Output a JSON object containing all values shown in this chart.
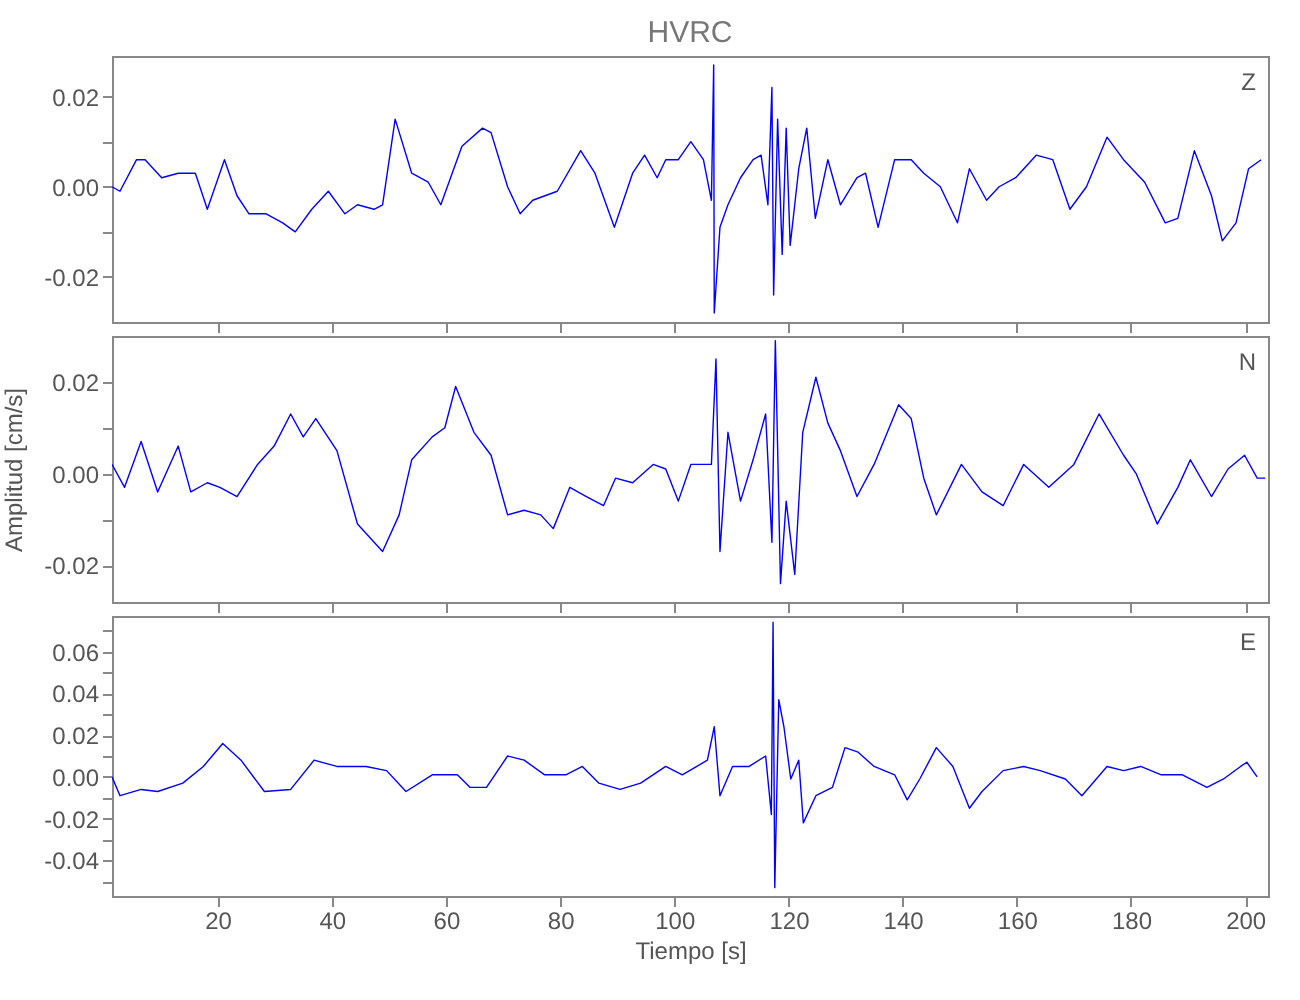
{
  "chart_data": [
    {
      "type": "line",
      "title": "HVRC",
      "annotations": [
        "Z"
      ],
      "xlim": [
        1.5,
        204
      ],
      "xticks": [
        20,
        40,
        60,
        80,
        100,
        120,
        140,
        160,
        180,
        200
      ],
      "ylim": [
        -0.03,
        0.029
      ],
      "yticks": [
        {
          "value": -0.02,
          "label": "-0.02"
        },
        {
          "value": -0.01,
          "label": null
        },
        {
          "value": 0,
          "label": "0.00"
        },
        {
          "value": 0.01,
          "label": null
        },
        {
          "value": 0.02,
          "label": "0.02"
        }
      ],
      "tick_labels": "y",
      "grid": false,
      "marker": "none",
      "line_style": "solid",
      "series": [
        {
          "color": "#0000ff",
          "x": [
            1.5,
            2.9,
            5.8,
            7.3,
            10.2,
            13.1,
            16.1,
            18.2,
            21.2,
            23.4,
            25.5,
            28.5,
            31.4,
            33.6,
            36.5,
            39.4,
            42.3,
            44.5,
            47.4,
            48.9,
            51.1,
            54.0,
            56.9,
            59.1,
            62.8,
            66.4,
            67.9,
            70.8,
            73.0,
            75.2,
            79.5,
            83.6,
            86.1,
            89.5,
            92.7,
            94.8,
            97.0,
            98.5,
            100.7,
            102.9,
            105.1,
            106.5,
            106.9,
            107.0,
            108.0,
            109.4,
            111.6,
            113.8,
            115.2,
            116.4,
            117.1,
            117.4,
            118.1,
            118.9,
            119.6,
            120.3,
            121.8,
            123.2,
            124.7,
            126.9,
            129.1,
            132.0,
            133.5,
            135.7,
            138.6,
            141.5,
            143.7,
            146.6,
            149.6,
            151.7,
            154.7,
            156.9,
            159.8,
            163.4,
            166.3,
            169.3,
            172.2,
            175.8,
            178.7,
            182.4,
            186.0,
            188.2,
            191.1,
            194.1,
            196.0,
            198.4,
            200.6,
            202.8
          ],
          "values": [
            0,
            -0.001,
            0.006,
            0.006,
            0.002,
            0.003,
            0.003,
            -0.005,
            0.006,
            -0.002,
            -0.006,
            -0.006,
            -0.008,
            -0.01,
            -0.005,
            -0.001,
            -0.006,
            -0.004,
            -0.005,
            -0.004,
            0.015,
            0.003,
            0.001,
            -0.004,
            0.009,
            0.013,
            0.012,
            0,
            -0.006,
            -0.003,
            -0.001,
            0.008,
            0.003,
            -0.009,
            0.003,
            0.007,
            0.002,
            0.006,
            0.006,
            0.01,
            0.006,
            -0.003,
            0.027,
            -0.028,
            -0.009,
            -0.004,
            0.002,
            0.006,
            0.007,
            -0.004,
            0.022,
            -0.024,
            0.015,
            -0.015,
            0.013,
            -0.013,
            0.004,
            0.013,
            -0.007,
            0.006,
            -0.004,
            0.002,
            0.003,
            -0.009,
            0.006,
            0.006,
            0.003,
            0,
            -0.008,
            0.004,
            -0.003,
            0,
            0.002,
            0.007,
            0.006,
            -0.005,
            0,
            0.011,
            0.006,
            0.001,
            -0.008,
            -0.007,
            0.008,
            -0.002,
            -0.012,
            -0.008,
            0.004,
            0.006
          ]
        }
      ]
    },
    {
      "type": "line",
      "ylabel": "Amplitud [cm/s]",
      "annotations": [
        "N"
      ],
      "xlim": [
        1.5,
        204
      ],
      "xticks": [
        20,
        40,
        60,
        80,
        100,
        120,
        140,
        160,
        180,
        200
      ],
      "ylim": [
        -0.028,
        0.03
      ],
      "yticks": [
        {
          "value": -0.02,
          "label": "-0.02"
        },
        {
          "value": -0.01,
          "label": null
        },
        {
          "value": 0,
          "label": "0.00"
        },
        {
          "value": 0.01,
          "label": null
        },
        {
          "value": 0.02,
          "label": "0.02"
        }
      ],
      "tick_labels": "y",
      "grid": false,
      "marker": "none",
      "line_style": "solid",
      "series": [
        {
          "color": "#0000ff",
          "x": [
            1.5,
            3.7,
            6.6,
            9.5,
            13.1,
            15.3,
            18.2,
            20.4,
            23.4,
            27.0,
            29.9,
            32.8,
            35.0,
            37.2,
            40.9,
            44.5,
            48.9,
            51.8,
            54.0,
            57.6,
            59.8,
            61.7,
            64.9,
            67.9,
            70.8,
            73.7,
            76.6,
            78.8,
            81.7,
            84.6,
            87.6,
            89.7,
            92.7,
            96.3,
            98.5,
            100.7,
            102.9,
            106.5,
            107.3,
            108.0,
            109.4,
            111.6,
            113.8,
            116.0,
            117.1,
            117.7,
            118.6,
            119.6,
            121.1,
            122.5,
            124.8,
            126.9,
            129.1,
            132.0,
            135.0,
            139.3,
            141.5,
            143.7,
            145.9,
            150.3,
            153.9,
            157.6,
            161.2,
            165.6,
            170.0,
            174.4,
            178.7,
            180.9,
            184.6,
            188.2,
            190.4,
            194.1,
            197.0,
            199.9,
            202.1,
            203.5
          ],
          "values": [
            0.002,
            -0.003,
            0.007,
            -0.004,
            0.006,
            -0.004,
            -0.002,
            -0.003,
            -0.005,
            0.002,
            0.006,
            0.013,
            0.008,
            0.012,
            0.005,
            -0.011,
            -0.017,
            -0.009,
            0.003,
            0.008,
            0.01,
            0.019,
            0.009,
            0.004,
            -0.009,
            -0.008,
            -0.009,
            -0.012,
            -0.003,
            -0.005,
            -0.007,
            -0.001,
            -0.002,
            0.002,
            0.001,
            -0.006,
            0.002,
            0.002,
            0.025,
            -0.017,
            0.009,
            -0.006,
            0.003,
            0.013,
            -0.015,
            0.029,
            -0.024,
            -0.006,
            -0.022,
            0.009,
            0.021,
            0.011,
            0.005,
            -0.005,
            0.002,
            0.015,
            0.012,
            -0.001,
            -0.009,
            0.002,
            -0.004,
            -0.007,
            0.002,
            -0.003,
            0.002,
            0.013,
            0.004,
            0,
            -0.011,
            -0.003,
            0.003,
            -0.005,
            0.001,
            0.004,
            -0.001,
            -0.001
          ]
        }
      ]
    },
    {
      "type": "line",
      "xlabel": "Tiempo [s]",
      "annotations": [
        "E"
      ],
      "xlim": [
        1.5,
        204
      ],
      "xticks": [
        20,
        40,
        60,
        80,
        100,
        120,
        140,
        160,
        180,
        200
      ],
      "ylim": [
        -0.057,
        0.077
      ],
      "yticks": [
        {
          "value": -0.05,
          "label": null
        },
        {
          "value": -0.04,
          "label": "-0.04"
        },
        {
          "value": -0.03,
          "label": null
        },
        {
          "value": -0.02,
          "label": "-0.02"
        },
        {
          "value": -0.01,
          "label": null
        },
        {
          "value": 0,
          "label": "0.00"
        },
        {
          "value": 0.01,
          "label": null
        },
        {
          "value": 0.02,
          "label": "0.02"
        },
        {
          "value": 0.03,
          "label": null
        },
        {
          "value": 0.04,
          "label": "0.04"
        },
        {
          "value": 0.05,
          "label": null
        },
        {
          "value": 0.06,
          "label": "0.06"
        },
        {
          "value": 0.07,
          "label": null
        }
      ],
      "grid": false,
      "marker": "none",
      "line_style": "solid",
      "series": [
        {
          "color": "#0000ff",
          "x": [
            1.5,
            2.9,
            6.6,
            9.5,
            13.9,
            17.5,
            20.9,
            24.1,
            28.2,
            32.8,
            36.9,
            40.9,
            46.0,
            49.6,
            53.0,
            57.6,
            62.0,
            64.2,
            67.1,
            70.8,
            73.7,
            77.3,
            81.0,
            83.9,
            86.8,
            90.5,
            94.1,
            98.5,
            101.4,
            105.8,
            107.0,
            108.0,
            110.2,
            113.1,
            116.0,
            117.0,
            117.3,
            117.6,
            118.3,
            119.2,
            120.4,
            121.8,
            122.6,
            124.8,
            127.7,
            129.9,
            132.1,
            135.0,
            138.6,
            140.8,
            143.0,
            145.9,
            148.8,
            151.7,
            153.9,
            157.6,
            161.2,
            164.1,
            168.5,
            171.4,
            175.8,
            178.7,
            181.7,
            185.3,
            189.0,
            193.3,
            196.2,
            199.2,
            200.3,
            202.1
          ],
          "values": [
            0,
            -0.009,
            -0.006,
            -0.007,
            -0.003,
            0.005,
            0.016,
            0.008,
            -0.007,
            -0.006,
            0.008,
            0.005,
            0.005,
            0.003,
            -0.007,
            0.001,
            0.001,
            -0.005,
            -0.005,
            0.01,
            0.008,
            0.001,
            0.001,
            0.005,
            -0.003,
            -0.006,
            -0.003,
            0.005,
            0.001,
            0.008,
            0.024,
            -0.009,
            0.005,
            0.005,
            0.01,
            -0.018,
            0.074,
            -0.053,
            0.037,
            0.024,
            -0.001,
            0.008,
            -0.022,
            -0.009,
            -0.005,
            0.014,
            0.012,
            0.005,
            0.001,
            -0.011,
            -0.001,
            0.014,
            0.005,
            -0.015,
            -0.007,
            0.003,
            0.005,
            0.003,
            -0.001,
            -0.009,
            0.005,
            0.003,
            0.005,
            0.001,
            0.001,
            -0.005,
            -0.001,
            0.005,
            0.007,
            0
          ]
        }
      ]
    }
  ]
}
